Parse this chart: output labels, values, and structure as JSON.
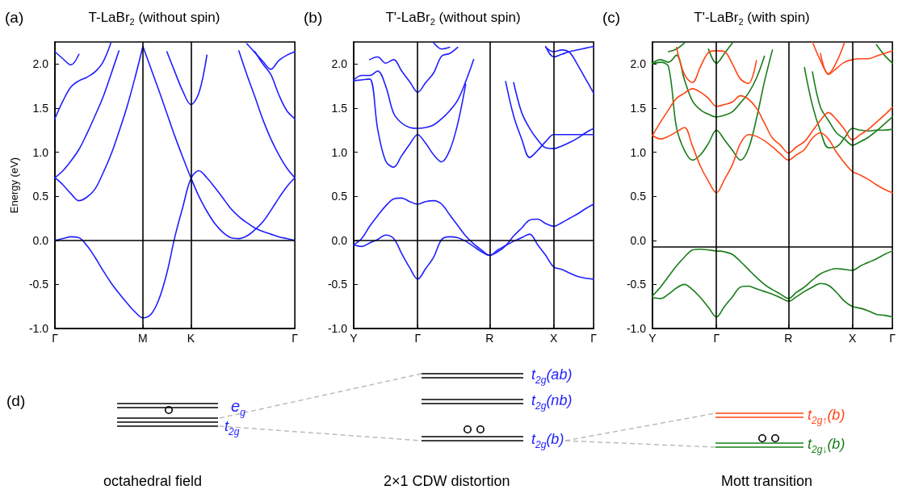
{
  "chart_data": [
    {
      "type": "line",
      "title": "T-LaBr$_{2}$ (without spin)",
      "ylabel": "Energy (eV)",
      "annotations": [
        "(a)"
      ],
      "categories": [
        "Γ",
        null,
        null,
        null,
        null,
        null,
        null,
        null,
        null,
        null,
        null,
        "M",
        null,
        null,
        null,
        null,
        null,
        "K",
        null,
        null,
        null,
        null,
        null,
        null,
        null,
        null,
        null,
        null,
        null,
        null,
        "Γ"
      ],
      "ylim": [
        -1,
        2.25
      ],
      "yticks": [
        {
          "value": -1,
          "label": "-1.0"
        },
        {
          "value": -0.5,
          "label": "-0.5"
        },
        {
          "value": 0,
          "label": "0.0"
        },
        {
          "value": 0.5,
          "label": "0.5"
        },
        {
          "value": 1,
          "label": "1.0"
        },
        {
          "value": 1.5,
          "label": "1.5"
        },
        {
          "value": 2,
          "label": "2.0"
        }
      ],
      "ref_lines": [
        {
          "axis": "x",
          "value": "M",
          "color": "#000000"
        },
        {
          "axis": "x",
          "value": "K",
          "color": "#000000"
        },
        {
          "axis": "y",
          "value": 0,
          "color": "#000000"
        }
      ],
      "series": [
        {
          "color": "#1f1fff",
          "values": [
            0,
            0.02,
            0.04,
            0.03,
            -0.06,
            -0.19,
            -0.34,
            -0.48,
            -0.6,
            -0.71,
            -0.81,
            -0.88,
            -0.84,
            -0.67,
            -0.37,
            0.04,
            0.38,
            0.7,
            0.79,
            0.71,
            0.6,
            0.48,
            0.36,
            0.27,
            0.2,
            0.14,
            0.1,
            0.07,
            0.04,
            0.02,
            0
          ]
        },
        {
          "color": "#1f1fff",
          "values": [
            null,
            null,
            null,
            null,
            null,
            null,
            null,
            null,
            null,
            null,
            null,
            2.2,
            1.95,
            1.7,
            1.44,
            1.18,
            0.94,
            0.71,
            0.5,
            0.33,
            0.19,
            0.09,
            0.03,
            0.02,
            0.05,
            0.12,
            0.21,
            0.34,
            0.48,
            0.61,
            0.71
          ]
        },
        {
          "color": "#1f1fff",
          "values": [
            0.71,
            0.63,
            0.53,
            0.45,
            0.49,
            0.58,
            0.76,
            0.97,
            1.23,
            1.51,
            1.84,
            2.2,
            null,
            null,
            null,
            null,
            null,
            null,
            null,
            null,
            null,
            null,
            null,
            null,
            null,
            null,
            null,
            null,
            null,
            null,
            null
          ]
        },
        {
          "color": "#1f1fff",
          "values": [
            0.71,
            0.79,
            0.9,
            1.03,
            1.21,
            1.41,
            1.62,
            1.88,
            2.15,
            null,
            null,
            null,
            null,
            null,
            null,
            null,
            null,
            null,
            null,
            null,
            null,
            null,
            null,
            null,
            null,
            null,
            null,
            null,
            null,
            null,
            null
          ]
        },
        {
          "color": "#1f1fff",
          "values": [
            1.38,
            1.58,
            1.74,
            1.81,
            1.85,
            1.91,
            2.02,
            2.24,
            null,
            null,
            null,
            null,
            null,
            null,
            null,
            null,
            null,
            null,
            null,
            null,
            null,
            null,
            null,
            null,
            null,
            null,
            null,
            null,
            null,
            null,
            null
          ]
        },
        {
          "color": "#1f1fff",
          "values": [
            2.14,
            2.06,
            1.99,
            2.11,
            null,
            null,
            null,
            null,
            null,
            null,
            null,
            null,
            null,
            null,
            null,
            null,
            null,
            null,
            null,
            null,
            null,
            null,
            null,
            null,
            null,
            null,
            null,
            null,
            null,
            null,
            null
          ]
        },
        {
          "color": "#1f1fff",
          "values": [
            null,
            null,
            null,
            null,
            null,
            null,
            null,
            null,
            null,
            null,
            null,
            null,
            null,
            null,
            2.14,
            1.91,
            1.69,
            1.54,
            1.67,
            2.1,
            null,
            null,
            null,
            null,
            null,
            null,
            null,
            null,
            null,
            null,
            null
          ]
        },
        {
          "color": "#1f1fff",
          "values": [
            null,
            null,
            null,
            null,
            null,
            null,
            null,
            null,
            null,
            null,
            null,
            null,
            null,
            null,
            null,
            null,
            null,
            null,
            null,
            null,
            null,
            null,
            null,
            2.15,
            1.88,
            1.63,
            1.37,
            1.15,
            0.97,
            0.82,
            0.71
          ]
        },
        {
          "color": "#1f1fff",
          "values": [
            null,
            null,
            null,
            null,
            null,
            null,
            null,
            null,
            null,
            null,
            null,
            null,
            null,
            null,
            null,
            null,
            null,
            null,
            null,
            null,
            null,
            null,
            null,
            null,
            2.23,
            2.13,
            2.03,
            1.94,
            2.04,
            2.1,
            2.14
          ]
        },
        {
          "color": "#1f1fff",
          "values": [
            null,
            null,
            null,
            null,
            null,
            null,
            null,
            null,
            null,
            null,
            null,
            null,
            null,
            null,
            null,
            null,
            null,
            null,
            null,
            null,
            null,
            null,
            null,
            null,
            null,
            2.14,
            2.0,
            1.88,
            1.65,
            1.47,
            1.38
          ]
        }
      ]
    },
    {
      "type": "line",
      "title": "T'-LaBr$_{2}$ (without spin)",
      "annotations": [
        "(b)"
      ],
      "categories": [
        "Y",
        null,
        null,
        null,
        null,
        null,
        null,
        null,
        "Γ",
        null,
        null,
        null,
        null,
        null,
        null,
        null,
        null,
        "R",
        null,
        null,
        null,
        null,
        null,
        null,
        null,
        "X",
        null,
        null,
        null,
        null,
        "Γ"
      ],
      "ylim": [
        -1,
        2.25
      ],
      "yticks": [
        {
          "value": -1,
          "label": "-1.0"
        },
        {
          "value": -0.5,
          "label": "-0.5"
        },
        {
          "value": 0,
          "label": "0.0"
        },
        {
          "value": 0.5,
          "label": "0.5"
        },
        {
          "value": 1,
          "label": "1.0"
        },
        {
          "value": 1.5,
          "label": "1.5"
        },
        {
          "value": 2,
          "label": "2.0"
        }
      ],
      "ref_lines": [
        {
          "axis": "x",
          "value": "Γ",
          "color": "#000000"
        },
        {
          "axis": "x",
          "value": "R",
          "color": "#000000"
        },
        {
          "axis": "x",
          "value": "X",
          "color": "#000000"
        },
        {
          "axis": "y",
          "value": 0,
          "color": "#000000"
        }
      ],
      "series": [
        {
          "color": "#1f1fff",
          "values": [
            -0.05,
            -0.07,
            -0.03,
            0.01,
            0.06,
            0.02,
            -0.15,
            -0.31,
            -0.44,
            -0.32,
            -0.19,
            0.01,
            0.04,
            0.03,
            -0.01,
            -0.07,
            -0.13,
            -0.17,
            -0.11,
            -0.06,
            -0.01,
            0.03,
            0.07,
            -0.05,
            -0.17,
            -0.3,
            -0.33,
            -0.37,
            -0.41,
            -0.43,
            -0.44
          ]
        },
        {
          "color": "#1f1fff",
          "values": [
            -0.05,
            0.02,
            0.16,
            0.28,
            0.39,
            0.47,
            0.48,
            0.44,
            0.41,
            0.44,
            0.45,
            0.41,
            0.29,
            0.17,
            0.05,
            -0.04,
            -0.11,
            -0.17,
            -0.13,
            -0.06,
            0.05,
            0.14,
            0.23,
            0.24,
            0.19,
            0.16,
            0.2,
            0.25,
            0.3,
            0.36,
            0.41
          ]
        },
        {
          "color": "#1f1fff",
          "values": [
            1.81,
            1.82,
            1.83,
            1.26,
            0.9,
            0.83,
            0.96,
            1.09,
            1.2,
            1.1,
            0.97,
            0.89,
            1.02,
            1.32,
            1.77,
            null,
            null,
            null,
            null,
            null,
            null,
            null,
            null,
            null,
            null,
            null,
            null,
            null,
            null,
            null,
            null
          ]
        },
        {
          "color": "#1f1fff",
          "values": [
            1.82,
            1.87,
            1.87,
            1.92,
            1.75,
            1.44,
            1.33,
            1.28,
            1.27,
            1.28,
            1.31,
            1.38,
            1.47,
            1.59,
            1.8,
            2.05,
            null,
            null,
            null,
            null,
            null,
            null,
            null,
            null,
            null,
            null,
            null,
            null,
            null,
            null,
            null
          ]
        },
        {
          "color": "#1f1fff",
          "values": [
            null,
            null,
            2.05,
            2.08,
            2.01,
            2.05,
            1.92,
            1.8,
            1.68,
            1.79,
            1.9,
            2.09,
            2.12,
            2.19,
            null,
            null,
            null,
            null,
            null,
            null,
            null,
            null,
            null,
            null,
            null,
            null,
            null,
            null,
            null,
            null,
            null
          ]
        },
        {
          "color": "#1f1fff",
          "values": [
            null,
            null,
            null,
            null,
            null,
            null,
            null,
            null,
            null,
            null,
            2.24,
            2.17,
            2.19,
            null,
            null,
            null,
            null,
            null,
            null,
            null,
            null,
            null,
            null,
            null,
            null,
            null,
            null,
            null,
            null,
            null,
            null
          ]
        },
        {
          "color": "#1f1fff",
          "values": [
            null,
            null,
            null,
            null,
            null,
            null,
            null,
            null,
            null,
            null,
            null,
            null,
            null,
            null,
            null,
            null,
            null,
            null,
            null,
            1.8,
            1.41,
            1.15,
            0.94,
            1.02,
            1.12,
            1.2,
            1.2,
            1.2,
            1.2,
            1.2,
            1.2
          ]
        },
        {
          "color": "#1f1fff",
          "values": [
            null,
            null,
            null,
            null,
            null,
            null,
            null,
            null,
            null,
            null,
            null,
            null,
            null,
            null,
            null,
            null,
            null,
            null,
            null,
            null,
            1.79,
            1.45,
            1.27,
            1.14,
            1.05,
            1.04,
            1.07,
            1.11,
            1.16,
            1.22,
            1.27
          ]
        },
        {
          "color": "#1f1fff",
          "values": [
            null,
            null,
            null,
            null,
            null,
            null,
            null,
            null,
            null,
            null,
            null,
            null,
            null,
            null,
            null,
            null,
            null,
            null,
            null,
            null,
            null,
            null,
            null,
            null,
            2.19,
            2.14,
            2.16,
            2.13,
            1.99,
            1.83,
            1.67
          ]
        },
        {
          "color": "#1f1fff",
          "values": [
            null,
            null,
            null,
            null,
            null,
            null,
            null,
            null,
            null,
            null,
            null,
            null,
            null,
            null,
            null,
            null,
            null,
            null,
            null,
            null,
            null,
            null,
            null,
            null,
            2.2,
            2.08,
            2.11,
            2.14,
            2.16,
            2.18,
            2.2
          ]
        }
      ]
    },
    {
      "type": "line",
      "title": "T'-LaBr$_{2}$ (with spin)",
      "annotations": [
        "(c)"
      ],
      "categories": [
        "Y",
        null,
        null,
        null,
        null,
        null,
        null,
        null,
        "Γ",
        null,
        null,
        null,
        null,
        null,
        null,
        null,
        null,
        "R",
        null,
        null,
        null,
        null,
        null,
        null,
        null,
        "X",
        null,
        null,
        null,
        null,
        "Γ"
      ],
      "ylim": [
        -1,
        2.25
      ],
      "yticks": [
        {
          "value": -1,
          "label": "-1.0"
        },
        {
          "value": -0.5,
          "label": "-0.5"
        },
        {
          "value": 0,
          "label": "0.0"
        },
        {
          "value": 0.5,
          "label": "0.5"
        },
        {
          "value": 1,
          "label": "1.0"
        },
        {
          "value": 1.5,
          "label": "1.5"
        },
        {
          "value": 2,
          "label": "2.0"
        }
      ],
      "ref_lines": [
        {
          "axis": "x",
          "value": "Γ",
          "color": "#000000"
        },
        {
          "axis": "x",
          "value": "R",
          "color": "#000000"
        },
        {
          "axis": "x",
          "value": "X",
          "color": "#000000"
        },
        {
          "axis": "y",
          "value": -0.07,
          "color": "#000000"
        }
      ],
      "series": [
        {
          "color": "#187c18",
          "values": [
            -0.65,
            -0.66,
            -0.61,
            -0.54,
            -0.5,
            -0.56,
            -0.65,
            -0.76,
            -0.87,
            -0.75,
            -0.64,
            -0.53,
            -0.52,
            -0.55,
            -0.58,
            -0.61,
            -0.65,
            -0.69,
            -0.64,
            -0.58,
            -0.53,
            -0.49,
            -0.51,
            -0.59,
            -0.69,
            -0.75,
            -0.77,
            -0.8,
            -0.84,
            -0.85,
            -0.87
          ]
        },
        {
          "color": "#187c18",
          "values": [
            -0.63,
            -0.53,
            -0.41,
            -0.29,
            -0.19,
            -0.11,
            -0.1,
            -0.11,
            -0.12,
            -0.13,
            -0.16,
            -0.24,
            -0.33,
            -0.42,
            -0.5,
            -0.56,
            -0.61,
            -0.66,
            -0.59,
            -0.53,
            -0.45,
            -0.38,
            -0.34,
            -0.32,
            -0.33,
            -0.34,
            -0.29,
            -0.25,
            -0.21,
            -0.16,
            -0.12
          ]
        },
        {
          "color": "#187c18",
          "values": [
            2.0,
            2.02,
            1.97,
            1.28,
            1.02,
            0.91,
            0.97,
            1.1,
            1.25,
            1.14,
            1.02,
            0.91,
            1.04,
            1.38,
            1.8,
            2.16,
            null,
            null,
            null,
            null,
            null,
            null,
            null,
            null,
            null,
            null,
            null,
            null,
            null,
            null,
            null
          ]
        },
        {
          "color": "#187c18",
          "values": [
            2.01,
            2.05,
            2.02,
            2.1,
            1.82,
            1.58,
            1.48,
            1.43,
            1.4,
            1.42,
            1.46,
            1.56,
            1.67,
            1.84,
            2.09,
            null,
            null,
            null,
            null,
            null,
            null,
            null,
            null,
            null,
            null,
            null,
            null,
            null,
            null,
            null,
            null
          ]
        },
        {
          "color": "#187c18",
          "values": [
            null,
            null,
            null,
            null,
            null,
            null,
            null,
            2.17,
            2.01,
            2.12,
            2.24,
            null,
            null,
            null,
            null,
            null,
            null,
            null,
            null,
            null,
            null,
            null,
            null,
            null,
            null,
            null,
            null,
            null,
            null,
            null,
            null
          ]
        },
        {
          "color": "#187c18",
          "values": [
            null,
            null,
            2.14,
            2.17,
            2.24,
            null,
            null,
            null,
            null,
            null,
            null,
            null,
            null,
            null,
            null,
            null,
            null,
            null,
            null,
            null,
            null,
            null,
            null,
            null,
            null,
            null,
            null,
            null,
            null,
            null,
            null
          ]
        },
        {
          "color": "#187c18",
          "values": [
            null,
            null,
            null,
            null,
            null,
            null,
            null,
            null,
            null,
            null,
            null,
            null,
            null,
            null,
            null,
            null,
            null,
            null,
            null,
            1.96,
            1.53,
            1.24,
            1.05,
            1.06,
            1.16,
            1.27,
            1.25,
            1.24,
            1.25,
            1.25,
            1.26
          ]
        },
        {
          "color": "#187c18",
          "values": [
            null,
            null,
            null,
            null,
            null,
            null,
            null,
            null,
            null,
            null,
            null,
            null,
            null,
            null,
            null,
            null,
            null,
            null,
            null,
            null,
            1.91,
            1.51,
            1.36,
            1.22,
            1.15,
            1.08,
            1.12,
            1.17,
            1.24,
            1.32,
            1.4
          ]
        },
        {
          "color": "#187c18",
          "values": [
            null,
            null,
            null,
            null,
            null,
            null,
            null,
            null,
            null,
            null,
            null,
            null,
            null,
            null,
            null,
            null,
            null,
            null,
            null,
            null,
            null,
            null,
            null,
            null,
            null,
            null,
            null,
            null,
            2.22,
            2.1,
            2.01
          ]
        },
        {
          "color": "#ff4514",
          "values": [
            1.19,
            1.15,
            1.18,
            1.23,
            1.28,
            1.07,
            0.84,
            0.67,
            0.54,
            0.69,
            0.86,
            1.1,
            1.2,
            1.18,
            1.13,
            1.06,
            0.98,
            0.91,
            0.97,
            1.03,
            1.16,
            1.22,
            1.15,
            1.0,
            0.88,
            0.78,
            0.74,
            0.69,
            0.63,
            0.58,
            0.54
          ]
        },
        {
          "color": "#ff4514",
          "values": [
            1.19,
            1.34,
            1.48,
            1.61,
            1.67,
            1.72,
            1.68,
            1.61,
            1.52,
            1.54,
            1.57,
            1.64,
            1.6,
            1.5,
            1.33,
            1.16,
            1.08,
            0.99,
            1.06,
            1.12,
            1.24,
            1.36,
            1.45,
            1.37,
            1.26,
            1.14,
            1.2,
            1.26,
            1.34,
            1.42,
            1.51
          ]
        },
        {
          "color": "#ff4514",
          "values": [
            null,
            null,
            null,
            2.19,
            1.88,
            1.79,
            1.97,
            2.13,
            2.15,
            2.14,
            2.0,
            1.83,
            1.78,
            2.04,
            null,
            null,
            null,
            null,
            null,
            null,
            null,
            null,
            null,
            null,
            null,
            null,
            null,
            null,
            null,
            null,
            null
          ]
        },
        {
          "color": "#ff4514",
          "values": [
            null,
            null,
            null,
            null,
            null,
            null,
            null,
            null,
            null,
            null,
            null,
            null,
            null,
            null,
            null,
            null,
            null,
            null,
            null,
            null,
            2.25,
            2.04,
            1.89,
            2.02,
            2.24,
            null,
            null,
            null,
            null,
            null,
            null
          ]
        },
        {
          "color": "#ff4514",
          "values": [
            null,
            null,
            null,
            null,
            null,
            null,
            null,
            null,
            null,
            null,
            null,
            null,
            null,
            null,
            null,
            null,
            null,
            null,
            null,
            null,
            null,
            2.12,
            1.88,
            1.95,
            2.02,
            2.05,
            2.06,
            2.06,
            2.09,
            2.12,
            2.15
          ]
        }
      ]
    },
    {
      "type": "other",
      "annotations": [
        "(d)",
        "e$_{g}$",
        "t$_{2g}$",
        "t$_{2g}$(ab)",
        "t$_{2g}$(nb)",
        "t$_{2g}$(b)",
        "t$_{2g↑}$(b)",
        "t$_{2g↓}$(b)",
        "octahedral field",
        "2×1 CDW distortion",
        "Mott transition"
      ]
    }
  ]
}
